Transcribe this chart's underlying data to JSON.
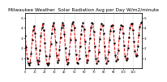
{
  "title": "Milwaukee Weather  Solar Radiation Avg per Day W/m2/minute",
  "title_fontsize": 4.2,
  "line_color": "#dd0000",
  "line_style": "--",
  "line_width": 0.7,
  "marker": ".",
  "marker_size": 1.5,
  "marker_color": "#000000",
  "background_color": "#ffffff",
  "grid_color": "#aaaaaa",
  "grid_style": ":",
  "x_values": [
    0,
    1,
    2,
    3,
    4,
    5,
    6,
    7,
    8,
    9,
    10,
    11,
    12,
    13,
    14,
    15,
    16,
    17,
    18,
    19,
    20,
    21,
    22,
    23,
    24,
    25,
    26,
    27,
    28,
    29,
    30,
    31,
    32,
    33,
    34,
    35,
    36,
    37,
    38,
    39,
    40,
    41,
    42,
    43,
    44,
    45,
    46,
    47,
    48,
    49,
    50,
    51,
    52,
    53,
    54,
    55,
    56,
    57,
    58,
    59,
    60,
    61,
    62,
    63,
    64,
    65,
    66,
    67,
    68,
    69,
    70,
    71,
    72,
    73,
    74,
    75,
    76,
    77,
    78,
    79,
    80,
    81,
    82,
    83,
    84,
    85,
    86,
    87,
    88,
    89,
    90,
    91,
    92,
    93,
    94,
    95,
    96,
    97,
    98,
    99,
    100,
    101,
    102,
    103,
    104,
    105,
    106,
    107,
    108,
    109,
    110,
    111,
    112,
    113,
    114,
    115,
    116,
    117,
    118,
    119
  ],
  "y_values": [
    3.2,
    2.1,
    1.0,
    0.5,
    0.3,
    0.6,
    1.5,
    2.8,
    3.8,
    4.2,
    3.5,
    2.0,
    0.8,
    0.4,
    0.7,
    1.8,
    3.2,
    4.0,
    4.4,
    3.8,
    2.5,
    1.2,
    0.5,
    0.3,
    0.5,
    1.2,
    2.4,
    3.5,
    4.2,
    4.5,
    3.9,
    2.6,
    1.3,
    0.6,
    0.8,
    1.9,
    3.1,
    4.0,
    4.5,
    4.3,
    3.4,
    2.0,
    0.9,
    0.4,
    0.6,
    1.5,
    2.8,
    3.8,
    4.4,
    4.6,
    4.0,
    2.8,
    1.4,
    0.6,
    0.5,
    1.0,
    2.2,
    3.4,
    4.2,
    4.5,
    3.9,
    2.7,
    1.3,
    0.6,
    0.8,
    1.8,
    3.0,
    4.0,
    4.5,
    4.4,
    3.6,
    2.2,
    1.0,
    0.5,
    0.7,
    1.6,
    2.9,
    3.9,
    4.4,
    4.3,
    3.5,
    2.2,
    1.1,
    0.5,
    0.7,
    1.6,
    2.8,
    3.7,
    4.2,
    4.3,
    3.7,
    2.5,
    1.3,
    0.7,
    0.9,
    1.8,
    3.0,
    3.9,
    4.3,
    4.2,
    3.5,
    2.3,
    1.2,
    0.8,
    1.0,
    2.0,
    3.1,
    4.0,
    4.4,
    4.4,
    3.8,
    2.7,
    1.7,
    1.2,
    1.3,
    2.2,
    3.3,
    4.1,
    4.5,
    4.6
  ],
  "ylim": [
    0,
    5.5
  ],
  "xlim": [
    0,
    119
  ],
  "yticks_left": [
    1,
    2,
    3,
    4,
    5
  ],
  "yticks_right": [
    1,
    2,
    3,
    4,
    5
  ],
  "ytick_fontsize": 3.0,
  "xtick_fontsize": 2.5,
  "grid_x_positions": [
    10,
    20,
    30,
    40,
    50,
    60,
    70,
    80,
    90,
    100,
    110
  ],
  "xtick_positions": [
    0,
    10,
    20,
    30,
    40,
    50,
    60,
    70,
    80,
    90,
    100,
    110
  ]
}
